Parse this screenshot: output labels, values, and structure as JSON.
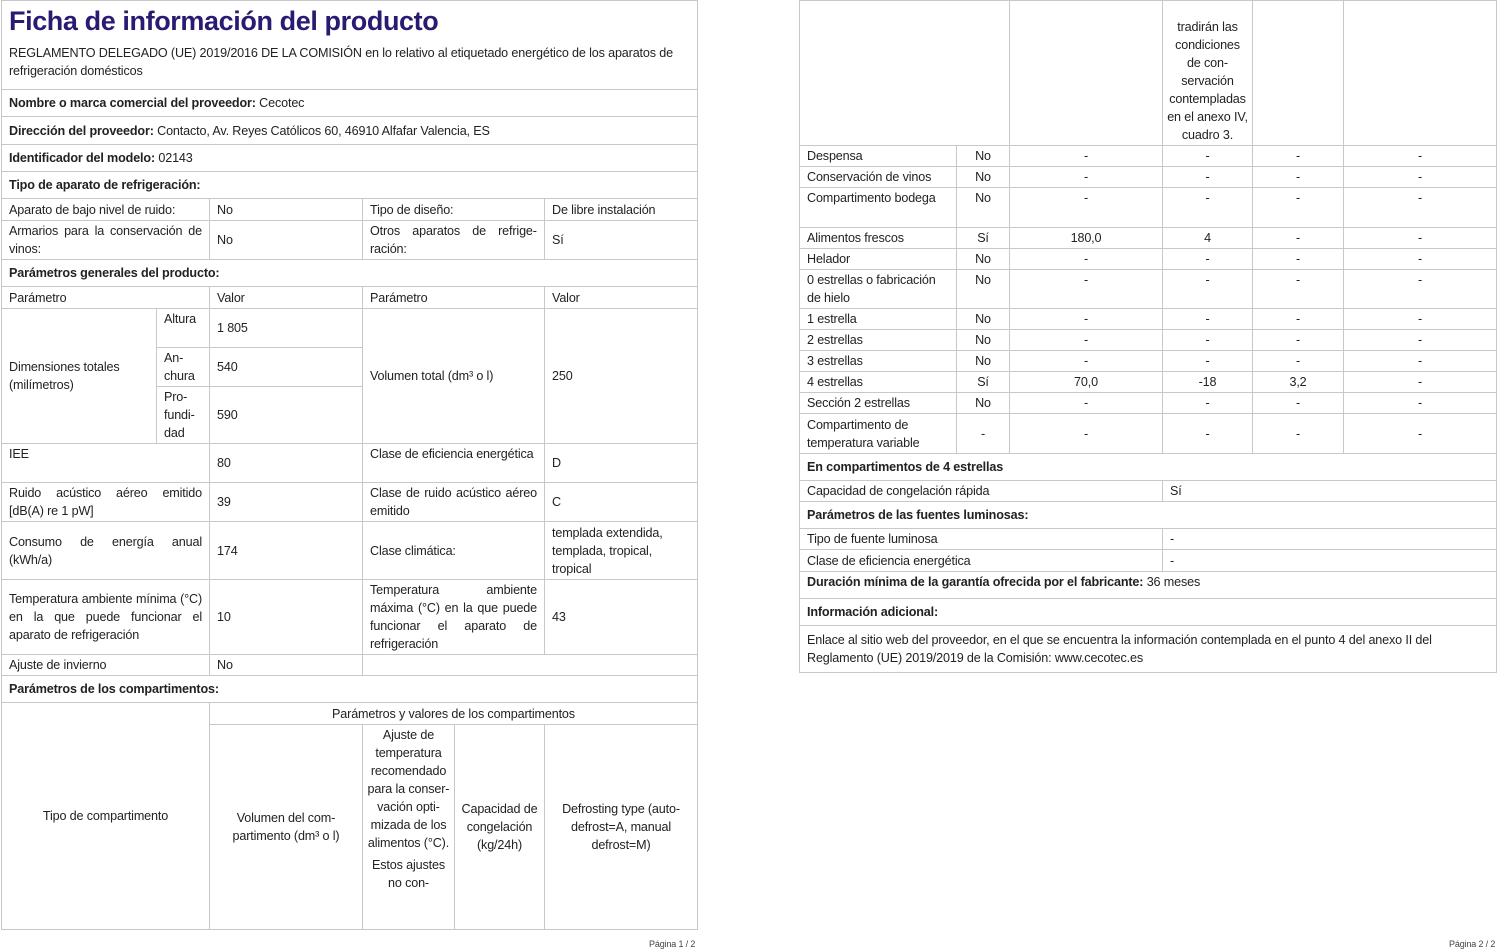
{
  "page1": {
    "title": "Ficha de información del producto",
    "regulation": "REGLAMENTO DELEGADO (UE) 2019/2016 DE LA COMISIÓN en lo relativo al etiquetado energético de los aparatos de refrigeración domésticos",
    "supplier_name": {
      "label": "Nombre o marca comercial del proveedor:",
      "value": "Cecotec"
    },
    "supplier_address": {
      "label": "Dirección del proveedor:",
      "value": "Contacto, Av. Reyes Católicos 60, 46910 Alfafar Valencia, ES"
    },
    "model_id": {
      "label": "Identificador del modelo:",
      "value": "02143"
    },
    "appliance_type_heading": "Tipo de aparato de refrigeración:",
    "low_noise": {
      "label": "Aparato de bajo nivel de ruido:",
      "value": "No"
    },
    "design_type": {
      "label": "Tipo de diseño:",
      "value": "De libre instalación"
    },
    "wine_storage": {
      "label": "Armarios para la conservación de vinos:",
      "value": "No"
    },
    "other_appliance": {
      "label": "Otros aparatos de refrige­ración:",
      "value": "Sí"
    },
    "general_heading": "Parámetros generales del producto:",
    "param_headers": [
      "Parámetro",
      "Valor",
      "Parámetro",
      "Valor"
    ],
    "dimensions": {
      "label": "Dimensiones totales (milímetros)",
      "height_label": "Altu­ra",
      "height": "1 805",
      "width_label": "An­chura",
      "width": "540",
      "depth_label": "Pro­fundi­dad",
      "depth": "590"
    },
    "total_volume": {
      "label": "Volumen total (dm³ o l)",
      "value": "250"
    },
    "eei": {
      "label": "IEE",
      "value": "80"
    },
    "energy_class": {
      "label": "Clase de eficiencia energé­tica",
      "value": "D"
    },
    "noise": {
      "label": "Ruido acústico aéreo emitido [dB(A) re 1 pW]",
      "value": "39"
    },
    "noise_class": {
      "label": "Clase de ruido acústico aé­reo emitido",
      "value": "C"
    },
    "energy": {
      "label": "Consumo de energía anual (kWh/a)",
      "value": "174"
    },
    "climate_class": {
      "label": "Clase climática:",
      "value": "templada extendida, templada, tropical, tropical"
    },
    "min_temp": {
      "label": "Temperatura ambiente mínima (°C) en la que puede funcionar el aparato de refrigeración",
      "value": "10"
    },
    "max_temp": {
      "label": "Temperatura ambiente máxima (°C) en la que pue­de funcionar el aparato de refrigeración",
      "value": "43"
    },
    "winter": {
      "label": "Ajuste de invierno",
      "value": "No"
    },
    "compartments_heading": "Parámetros de los compartimentos:",
    "compartment_table": {
      "type_header": "Tipo de compartimento",
      "params_header": "Parámetros y valores de los compartimentos",
      "volume_header": "Volumen del com­partimento (dm³ o l)",
      "temp_header": "Ajuste de temperatu­ra recomen­dado para la conser­vación opti­mizada de los alimen­tos (°C).",
      "temp_header_2": "Estos ajus­tes no con-",
      "capacity_header": "Capacidad de con­gelación (kg/24h)",
      "defrost_header": "Defrosting type (au­to-defrost=A, ma­nual defrost=M)"
    },
    "page_label": "Página 1 / 2"
  },
  "page2": {
    "temp_header_cont": "tradirán las condicio­nes de con­servación contempla­das en el anexo IV, cuadro 3.",
    "rows": [
      [
        "Despensa",
        "No",
        "-",
        "-",
        "-",
        "-"
      ],
      [
        "Conservación de vinos",
        "No",
        "-",
        "-",
        "-",
        "-"
      ],
      [
        "Compartimento bode­ga",
        "No",
        "-",
        "-",
        "-",
        "-"
      ],
      [
        "Alimentos frescos",
        "Sí",
        "180,0",
        "4",
        "-",
        "-"
      ],
      [
        "Helador",
        "No",
        "-",
        "-",
        "-",
        "-"
      ],
      [
        "0 estrellas o fabrica­ción de hielo",
        "No",
        "-",
        "-",
        "-",
        "-"
      ],
      [
        "1 estrella",
        "No",
        "-",
        "-",
        "-",
        "-"
      ],
      [
        "2 estrellas",
        "No",
        "-",
        "-",
        "-",
        "-"
      ],
      [
        "3 estrellas",
        "No",
        "-",
        "-",
        "-",
        "-"
      ],
      [
        "4 estrellas",
        "Sí",
        "70,0",
        "-18",
        "3,2",
        "-"
      ],
      [
        "Sección 2 estrellas",
        "No",
        "-",
        "-",
        "-",
        "-"
      ],
      [
        "Compartimento de temperatura variable",
        "-",
        "-",
        "-",
        "-",
        "-"
      ]
    ],
    "four_star_heading": "En compartimentos de 4 estrellas",
    "fast_freeze": {
      "label": "Capacidad de congelación rápida",
      "value": "Sí"
    },
    "light_heading": "Parámetros de las fuentes luminosas:",
    "light_type": {
      "label": "Tipo de fuente luminosa",
      "value": "-"
    },
    "light_class": {
      "label": "Clase de eficiencia energética",
      "value": "-"
    },
    "warranty": {
      "label": "Duración mínima de la garantía ofrecida por el fabricante:",
      "value": "36 meses"
    },
    "additional_heading": "Información adicional:",
    "website_text": "Enlace al sitio web del proveedor, en el que se encuentra la información contemplada en el punto 4 del anexo II del Reglamento (UE) 2019/2019 de la Comisión:  www.cecotec.es",
    "page_label": "Página 2 / 2"
  }
}
